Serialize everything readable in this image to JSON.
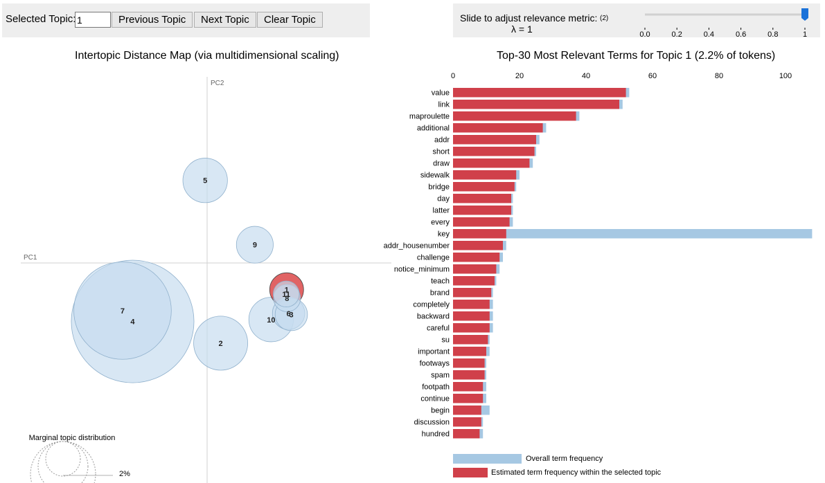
{
  "controls": {
    "selected_topic_label": "Selected Topic:",
    "selected_topic_value": "1",
    "previous_label": "Previous Topic",
    "next_label": "Next Topic",
    "clear_label": "Clear Topic",
    "slider_label": "Slide to adjust relevance metric:",
    "slider_note": "(2)",
    "lambda_text": "λ = 1",
    "slider_ticks": [
      "0.0",
      "0.2",
      "0.4",
      "0.6",
      "0.8",
      "1"
    ],
    "lambda_value": 1
  },
  "map": {
    "title": "Intertopic Distance Map (via multidimensional scaling)",
    "pc1_label": "PC1",
    "pc2_label": "PC2",
    "legend_title": "Marginal topic distribution",
    "legend_value": "2%"
  },
  "bars": {
    "title": "Top-30 Most Relevant Terms for Topic 1 (2.2% of tokens)",
    "legend_overall": "Overall term frequency",
    "legend_estimated": "Estimated term frequency within the selected topic"
  },
  "colors": {
    "bubble_fill": "#c6dbef",
    "bubble_selected": "#d62728",
    "bar_overall": "#a6c8e3",
    "bar_topic": "#d0404a",
    "panel_bg": "#eeeeee",
    "slider_handle": "#1a72d9"
  },
  "chart_data": [
    {
      "type": "scatter",
      "title": "Intertopic Distance Map (via multidimensional scaling)",
      "xlabel": "PC1",
      "ylabel": "PC2",
      "points": [
        {
          "label": "5",
          "x": -0.5,
          "y": 21.3,
          "size": 3.8,
          "selected": false
        },
        {
          "label": "9",
          "x": 12.3,
          "y": 4.7,
          "size": 2.6,
          "selected": false
        },
        {
          "label": "1",
          "x": 20.5,
          "y": -6.9,
          "size": 2.2,
          "selected": true
        },
        {
          "label": "11",
          "x": 20.4,
          "y": -8.0,
          "size": 1.3,
          "selected": false
        },
        {
          "label": "8",
          "x": 20.6,
          "y": -9.1,
          "size": 1.4,
          "selected": false
        },
        {
          "label": "6",
          "x": 21.0,
          "y": -13.0,
          "size": 2.0,
          "selected": false
        },
        {
          "label": "3",
          "x": 21.7,
          "y": -13.3,
          "size": 2.0,
          "selected": false
        },
        {
          "label": "10",
          "x": 16.5,
          "y": -14.6,
          "size": 3.8,
          "selected": false
        },
        {
          "label": "7",
          "x": -21.8,
          "y": -12.3,
          "size": 18.2,
          "selected": false
        },
        {
          "label": "4",
          "x": -19.2,
          "y": -15.1,
          "size": 28.8,
          "selected": false
        },
        {
          "label": "2",
          "x": 3.5,
          "y": -20.7,
          "size": 5.6,
          "selected": false
        }
      ]
    },
    {
      "type": "bar",
      "title": "Top-30 Most Relevant Terms for Topic 1 (2.2% of tokens)",
      "xlim": [
        0,
        108
      ],
      "xticks": [
        0,
        20,
        40,
        60,
        80,
        100
      ],
      "categories": [
        "value",
        "link",
        "maproulette",
        "additional",
        "addr",
        "short",
        "draw",
        "sidewalk",
        "bridge",
        "day",
        "latter",
        "every",
        "key",
        "addr_housenumber",
        "challenge",
        "notice_minimum",
        "teach",
        "brand",
        "completely",
        "backward",
        "careful",
        "su",
        "important",
        "footways",
        "spam",
        "footpath",
        "continue",
        "begin",
        "discussion",
        "hundred"
      ],
      "series": [
        {
          "name": "Overall term frequency",
          "values": [
            53,
            51,
            38,
            28,
            26,
            25,
            24,
            20,
            19,
            18,
            18,
            18,
            108,
            16,
            15,
            14,
            13,
            12,
            12,
            12,
            12,
            11,
            11,
            10,
            10,
            10,
            10,
            11,
            9,
            9
          ]
        },
        {
          "name": "Estimated term frequency within the selected topic",
          "values": [
            52,
            50,
            37,
            27,
            25,
            24.5,
            23,
            19,
            18.5,
            17.5,
            17.5,
            17,
            16,
            15,
            14,
            13,
            12.5,
            11.5,
            11,
            11,
            11,
            10.5,
            10,
            9.5,
            9.5,
            9,
            9,
            8.5,
            8.5,
            8
          ]
        }
      ]
    }
  ]
}
